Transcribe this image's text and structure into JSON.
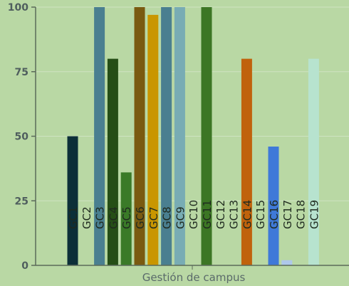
{
  "chart_data": {
    "type": "bar",
    "xlabel": "Gestión de campus",
    "ylabel": "",
    "ylim": [
      0,
      100
    ],
    "yticks": [
      0,
      25,
      50,
      75,
      100
    ],
    "grid": true,
    "series": [
      {
        "category": "GC1",
        "value": 50,
        "color": "#0c2f38"
      },
      {
        "category": "GC2",
        "value": 0,
        "color": "#0c2f38"
      },
      {
        "category": "GC3",
        "value": 100,
        "color": "#4a7f90"
      },
      {
        "category": "GC4",
        "value": 80,
        "color": "#254e16"
      },
      {
        "category": "GC5",
        "value": 36,
        "color": "#3a7a28"
      },
      {
        "category": "GC6",
        "value": 100,
        "color": "#7a5a10"
      },
      {
        "category": "GC7",
        "value": 97,
        "color": "#c99600"
      },
      {
        "category": "GC8",
        "value": 100,
        "color": "#4a7f90"
      },
      {
        "category": "GC9",
        "value": 100,
        "color": "#78acb4"
      },
      {
        "category": "GC10",
        "value": 0,
        "color": "#78acb4"
      },
      {
        "category": "GC11",
        "value": 100,
        "color": "#3c7624"
      },
      {
        "category": "GC12",
        "value": 0,
        "color": "#3c7624"
      },
      {
        "category": "GC13",
        "value": 0,
        "color": "#3c7624"
      },
      {
        "category": "GC14",
        "value": 80,
        "color": "#c0620c"
      },
      {
        "category": "GC15",
        "value": 0,
        "color": "#c0620c"
      },
      {
        "category": "GC16",
        "value": 46,
        "color": "#3f79d8"
      },
      {
        "category": "GC17",
        "value": 2,
        "color": "#aec8ea"
      },
      {
        "category": "GC18",
        "value": 0,
        "color": "#aec8ea"
      },
      {
        "category": "GC19",
        "value": 80,
        "color": "#b7e3cf"
      }
    ]
  }
}
